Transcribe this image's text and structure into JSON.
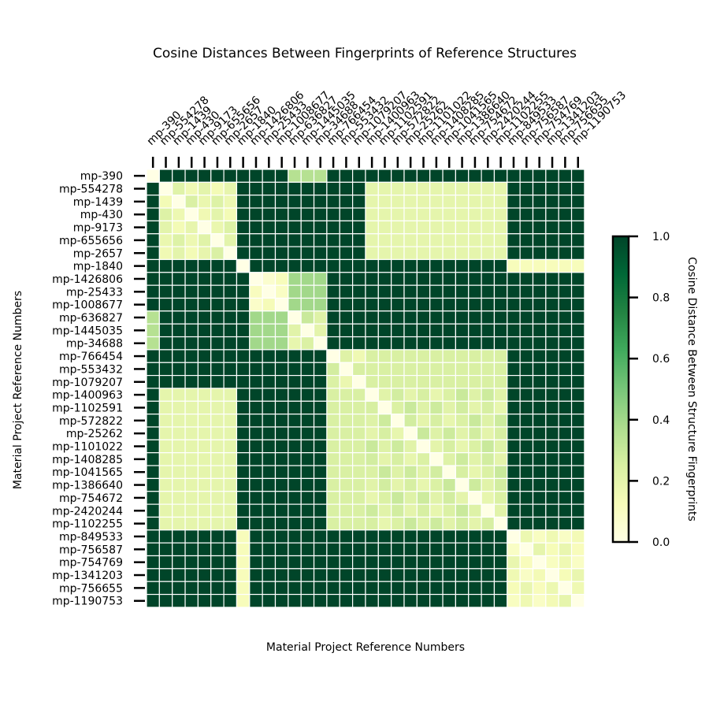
{
  "chart_data": {
    "type": "heatmap",
    "title": "Cosine Distances Between Fingerprints of Reference Structures",
    "xlabel": "Material Project Reference Numbers",
    "ylabel": "Material Project Reference Numbers",
    "labels": [
      "mp-390",
      "mp-554278",
      "mp-1439",
      "mp-430",
      "mp-9173",
      "mp-655656",
      "mp-2657",
      "mp-1840",
      "mp-1426806",
      "mp-25433",
      "mp-1008677",
      "mp-636827",
      "mp-1445035",
      "mp-34688",
      "mp-766454",
      "mp-553432",
      "mp-1079207",
      "mp-1400963",
      "mp-1102591",
      "mp-572822",
      "mp-25262",
      "mp-1101022",
      "mp-1408285",
      "mp-1041565",
      "mp-1386640",
      "mp-754672",
      "mp-2420244",
      "mp-1102255",
      "mp-849533",
      "mp-756587",
      "mp-754769",
      "mp-1341203",
      "mp-756655",
      "mp-1190753"
    ],
    "blocks": [
      {
        "range": [
          0,
          0
        ],
        "within": 0.02
      },
      {
        "range": [
          1,
          6
        ],
        "within": 0.2
      },
      {
        "range": [
          7,
          7
        ],
        "within": 0.0
      },
      {
        "range": [
          8,
          10
        ],
        "within": 0.1
      },
      {
        "range": [
          11,
          13
        ],
        "within": 0.25
      },
      {
        "range": [
          14,
          16
        ],
        "within": 0.22
      },
      {
        "range": [
          17,
          27
        ],
        "within": 0.25
      },
      {
        "range": [
          28,
          33
        ],
        "within": 0.15
      }
    ],
    "cross_blocks": [
      {
        "a": 0,
        "b": 1,
        "value": 1.0
      },
      {
        "a": 0,
        "b": 4,
        "value": 0.35
      },
      {
        "a": 1,
        "b": 6,
        "value": 0.2
      },
      {
        "a": 3,
        "b": 4,
        "value": 0.4
      },
      {
        "a": 5,
        "b": 6,
        "value": 0.25
      },
      {
        "a": 2,
        "b": 7,
        "value": 0.12
      }
    ],
    "default_value": 1.0,
    "colorbar": {
      "label": "Cosine Distance Between Structure Fingerprints",
      "ticks": [
        "0.0",
        "0.2",
        "0.4",
        "0.6",
        "0.8",
        "1.0"
      ],
      "range": [
        0.0,
        1.0
      ]
    },
    "colormap": [
      "#ffffe5",
      "#f7fcb9",
      "#d9f0a3",
      "#addd8e",
      "#78c679",
      "#41ab5d",
      "#238443",
      "#006837",
      "#004529"
    ]
  }
}
